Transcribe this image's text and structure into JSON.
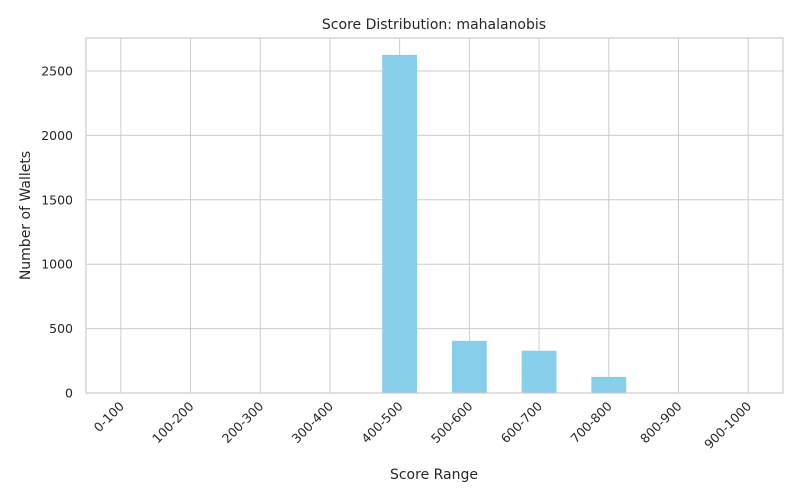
{
  "chart_data": {
    "type": "bar",
    "title": "Score Distribution: mahalanobis",
    "xlabel": "Score Range",
    "ylabel": "Number of Wallets",
    "categories": [
      "0-100",
      "100-200",
      "200-300",
      "300-400",
      "400-500",
      "500-600",
      "600-700",
      "700-800",
      "800-900",
      "900-1000"
    ],
    "values": [
      0,
      0,
      0,
      0,
      2625,
      405,
      328,
      125,
      0,
      0
    ],
    "ylim": [
      0,
      2756
    ],
    "yticks": [
      0,
      500,
      1000,
      1500,
      2000,
      2500
    ],
    "grid": true,
    "bar_color": "#87ceeb",
    "grid_color": "#cccccc"
  }
}
